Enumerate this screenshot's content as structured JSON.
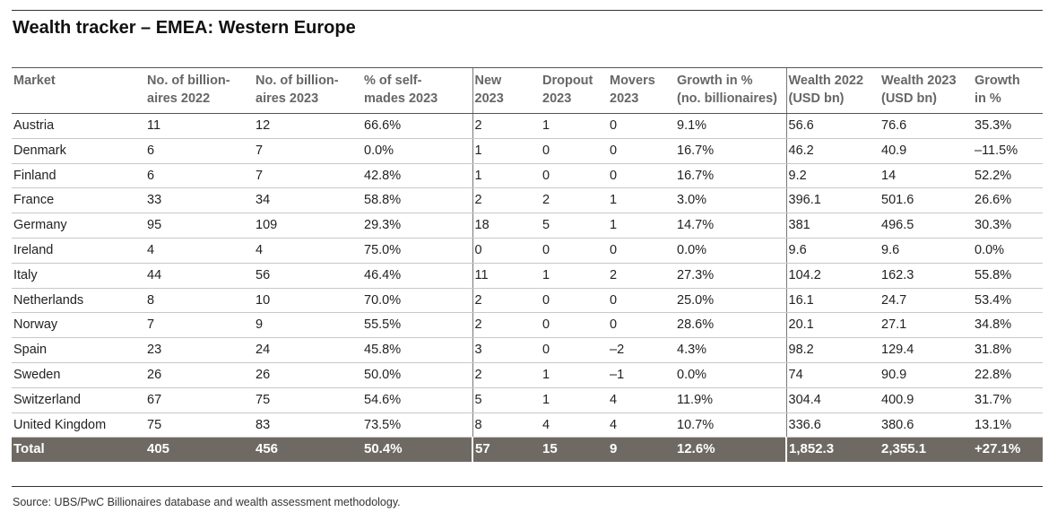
{
  "title": "Wealth tracker – EMEA: Western Europe",
  "table": {
    "headers": [
      [
        "Market",
        ""
      ],
      [
        "No. of billion-",
        "aires 2022"
      ],
      [
        "No. of billion-",
        "aires 2023"
      ],
      [
        "% of self-",
        "mades 2023"
      ],
      [
        "New",
        "2023"
      ],
      [
        "Dropout",
        "2023"
      ],
      [
        "Movers",
        "2023"
      ],
      [
        "Growth in %",
        "(no. billionaires)"
      ],
      [
        "Wealth 2022",
        "(USD bn)"
      ],
      [
        "Wealth 2023",
        "(USD bn)"
      ],
      [
        "Growth",
        "in %"
      ]
    ],
    "rows": [
      [
        "Austria",
        "11",
        "12",
        "66.6%",
        "2",
        "1",
        "0",
        "9.1%",
        "56.6",
        "76.6",
        "35.3%"
      ],
      [
        "Denmark",
        "6",
        "7",
        "0.0%",
        "1",
        "0",
        "0",
        "16.7%",
        "46.2",
        "40.9",
        "–11.5%"
      ],
      [
        "Finland",
        "6",
        "7",
        "42.8%",
        "1",
        "0",
        "0",
        "16.7%",
        "9.2",
        "14",
        "52.2%"
      ],
      [
        "France",
        "33",
        "34",
        "58.8%",
        "2",
        "2",
        "1",
        "3.0%",
        "396.1",
        "501.6",
        "26.6%"
      ],
      [
        "Germany",
        "95",
        "109",
        "29.3%",
        "18",
        "5",
        "1",
        "14.7%",
        "381",
        "496.5",
        "30.3%"
      ],
      [
        "Ireland",
        "4",
        "4",
        "75.0%",
        "0",
        "0",
        "0",
        "0.0%",
        "9.6",
        "9.6",
        "0.0%"
      ],
      [
        "Italy",
        "44",
        "56",
        "46.4%",
        "11",
        "1",
        "2",
        "27.3%",
        "104.2",
        "162.3",
        "55.8%"
      ],
      [
        "Netherlands",
        "8",
        "10",
        "70.0%",
        "2",
        "0",
        "0",
        "25.0%",
        "16.1",
        "24.7",
        "53.4%"
      ],
      [
        "Norway",
        "7",
        "9",
        "55.5%",
        "2",
        "0",
        "0",
        "28.6%",
        "20.1",
        "27.1",
        "34.8%"
      ],
      [
        "Spain",
        "23",
        "24",
        "45.8%",
        "3",
        "0",
        "–2",
        "4.3%",
        "98.2",
        "129.4",
        "31.8%"
      ],
      [
        "Sweden",
        "26",
        "26",
        "50.0%",
        "2",
        "1",
        "–1",
        "0.0%",
        "74",
        "90.9",
        "22.8%"
      ],
      [
        "Switzerland",
        "67",
        "75",
        "54.6%",
        "5",
        "1",
        "4",
        "11.9%",
        "304.4",
        "400.9",
        "31.7%"
      ],
      [
        "United Kingdom",
        "75",
        "83",
        "73.5%",
        "8",
        "4",
        "4",
        "10.7%",
        "336.6",
        "380.6",
        "13.1%"
      ]
    ],
    "total": [
      "Total",
      "405",
      "456",
      "50.4%",
      "57",
      "15",
      "9",
      "12.6%",
      "1,852.3",
      "2,355.1",
      "+27.1%"
    ]
  },
  "source": "Source: UBS/PwC Billionaires database and wealth assessment methodology."
}
